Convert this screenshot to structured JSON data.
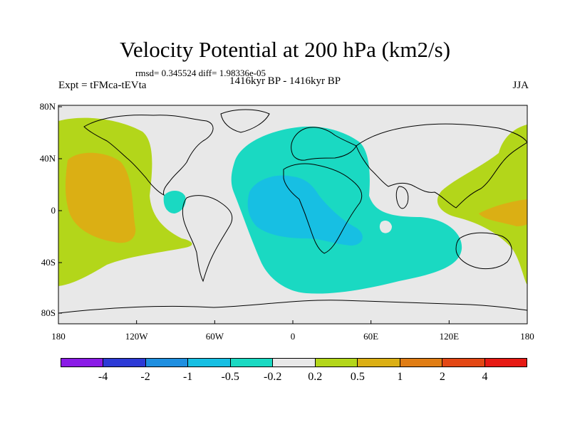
{
  "header": {
    "title": "Velocity Potential at 200 hPa (km2/s)",
    "rmsd": "rmsd= 0.345524 diff= 1.98336e-05",
    "experiment": "Expt = tFMca-tEVta",
    "period": "1416kyr BP - 1416kyr BP",
    "season": "JJA"
  },
  "axes": {
    "x_ticks": [
      "180",
      "120W",
      "60W",
      "0",
      "60E",
      "120E",
      "180"
    ],
    "y_ticks": [
      "80N",
      "40N",
      "0",
      "40S",
      "80S"
    ]
  },
  "colorbar": {
    "colors": [
      "#8a1be6",
      "#2d3ad6",
      "#1f8fe0",
      "#17bfe3",
      "#1ad9c2",
      "#e8e8e8",
      "#b3d61a",
      "#dbaf14",
      "#e07d14",
      "#e34714",
      "#e61a14"
    ],
    "labels": [
      "-4",
      "-2",
      "-1",
      "-0.5",
      "-0.2",
      "0.2",
      "0.5",
      "1",
      "2",
      "4"
    ]
  },
  "colors": {
    "background": "#e8e8e8",
    "negative_weak": "#1ad9c2",
    "negative_mid": "#17bfe3",
    "positive_weak": "#b3d61a",
    "positive_mid": "#dbaf14"
  }
}
